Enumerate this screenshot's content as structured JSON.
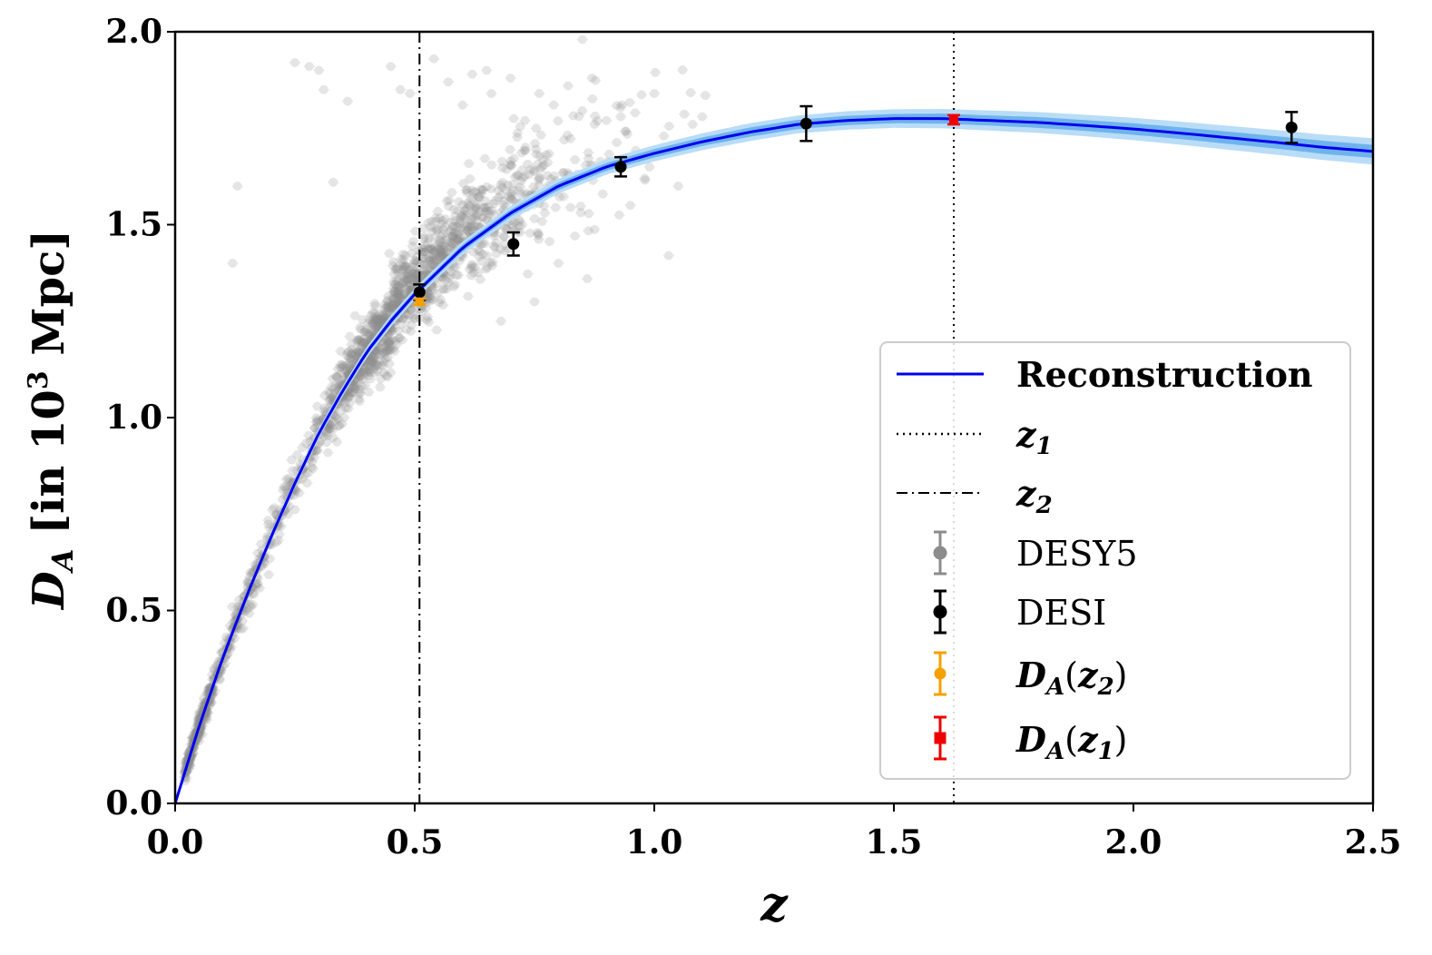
{
  "chart_data": {
    "type": "scatter",
    "xlabel": "z",
    "ylabel": "D_A [in 10^3 Mpc]",
    "ylabel_parts": {
      "main": "D",
      "sub": "A",
      "bracket_open": "[in 10",
      "sup": "3",
      "bracket_close": " Mpc]"
    },
    "xlim": [
      0.0,
      2.5
    ],
    "ylim": [
      0.0,
      2.0
    ],
    "xticks": [
      "0.0",
      "0.5",
      "1.0",
      "1.5",
      "2.0",
      "2.5"
    ],
    "yticks": [
      "0.0",
      "0.5",
      "1.0",
      "1.5",
      "2.0"
    ],
    "grid": false,
    "legend_position": "lower-right",
    "colors": {
      "reconstruction": "#0000ee",
      "band_outer": "#b9dcf7",
      "band_inner": "#6fb3ec",
      "desy5": "#8c8c8c",
      "desi": "#000000",
      "da_z2": "#f5a000",
      "da_z1": "#ee0000"
    },
    "vertical_lines": [
      {
        "name": "z_1",
        "x": 1.625,
        "style": "dotted"
      },
      {
        "name": "z_2",
        "x": 0.51,
        "style": "dashdot"
      }
    ],
    "reconstruction": {
      "name": "Reconstruction",
      "x": [
        0.0,
        0.05,
        0.1,
        0.15,
        0.2,
        0.25,
        0.3,
        0.35,
        0.4,
        0.45,
        0.5,
        0.55,
        0.6,
        0.7,
        0.8,
        0.9,
        1.0,
        1.1,
        1.2,
        1.3,
        1.4,
        1.5,
        1.6,
        1.7,
        1.8,
        1.9,
        2.0,
        2.1,
        2.2,
        2.3,
        2.4,
        2.5
      ],
      "y": [
        0.0,
        0.2,
        0.38,
        0.54,
        0.69,
        0.83,
        0.96,
        1.07,
        1.17,
        1.25,
        1.32,
        1.38,
        1.44,
        1.53,
        1.6,
        1.65,
        1.685,
        1.715,
        1.74,
        1.76,
        1.77,
        1.775,
        1.775,
        1.77,
        1.765,
        1.757,
        1.748,
        1.737,
        1.725,
        1.713,
        1.7,
        1.69
      ],
      "band_inner": [
        0.0,
        0.002,
        0.003,
        0.004,
        0.005,
        0.006,
        0.006,
        0.007,
        0.007,
        0.008,
        0.008,
        0.008,
        0.009,
        0.009,
        0.01,
        0.01,
        0.011,
        0.011,
        0.012,
        0.012,
        0.012,
        0.012,
        0.013,
        0.013,
        0.014,
        0.014,
        0.015,
        0.015,
        0.016,
        0.016,
        0.017,
        0.017
      ],
      "band_outer": [
        0.0,
        0.004,
        0.006,
        0.008,
        0.01,
        0.011,
        0.012,
        0.013,
        0.014,
        0.015,
        0.015,
        0.016,
        0.017,
        0.018,
        0.019,
        0.02,
        0.021,
        0.022,
        0.023,
        0.023,
        0.024,
        0.024,
        0.025,
        0.026,
        0.027,
        0.028,
        0.029,
        0.03,
        0.031,
        0.032,
        0.033,
        0.034
      ]
    },
    "desy5": {
      "name": "DESY5",
      "count": 1800,
      "x": [
        0.22,
        0.25,
        0.28,
        0.3,
        0.13,
        0.12,
        0.31,
        0.33,
        0.36,
        0.45,
        0.47,
        0.49,
        0.54,
        0.57,
        0.6,
        0.62,
        0.65,
        0.66,
        0.7,
        0.73,
        0.76,
        0.79,
        0.82,
        0.85,
        0.87,
        0.9,
        0.93,
        0.96,
        0.98,
        1.0,
        1.02,
        1.05,
        1.08,
        1.1,
        0.75,
        0.68,
        0.8,
        0.86,
        0.95,
        1.03
      ],
      "y": [
        2.01,
        1.92,
        1.91,
        1.9,
        1.6,
        1.4,
        1.85,
        1.61,
        1.82,
        1.91,
        1.85,
        1.84,
        1.93,
        1.87,
        1.81,
        1.89,
        1.9,
        1.84,
        1.88,
        1.77,
        1.84,
        1.81,
        1.86,
        1.98,
        1.88,
        1.77,
        1.78,
        1.79,
        1.62,
        1.84,
        1.73,
        1.6,
        1.76,
        1.78,
        1.3,
        1.25,
        1.4,
        1.36,
        1.55,
        1.42
      ]
    },
    "desi": {
      "name": "DESI",
      "points": [
        {
          "z": 0.51,
          "y": 1.325,
          "err": 0.02
        },
        {
          "z": 0.706,
          "y": 1.45,
          "err": 0.03
        },
        {
          "z": 0.93,
          "y": 1.65,
          "err": 0.025
        },
        {
          "z": 1.317,
          "y": 1.762,
          "err": 0.045
        },
        {
          "z": 2.33,
          "y": 1.752,
          "err": 0.04
        }
      ]
    },
    "da_z2": {
      "name": "D_A(z_2)",
      "z": 0.51,
      "y": 1.3,
      "err": 0.008
    },
    "da_z1": {
      "name": "D_A(z_1)",
      "z": 1.625,
      "y": 1.772,
      "err": 0.012
    }
  },
  "legend": {
    "reconstruction": "Reconstruction",
    "z1_main": "z",
    "z1_sub": "1",
    "z2_main": "z",
    "z2_sub": "2",
    "desy5": "DESY5",
    "desi": "DESI",
    "da_z2_main": "D",
    "da_z2_sub": "A",
    "da_z2_open": "(",
    "da_z2_arg": "z",
    "da_z2_arg_sub": "2",
    "da_z2_close": ")",
    "da_z1_main": "D",
    "da_z1_sub": "A",
    "da_z1_open": "(",
    "da_z1_arg": "z",
    "da_z1_arg_sub": "1",
    "da_z1_close": ")"
  }
}
